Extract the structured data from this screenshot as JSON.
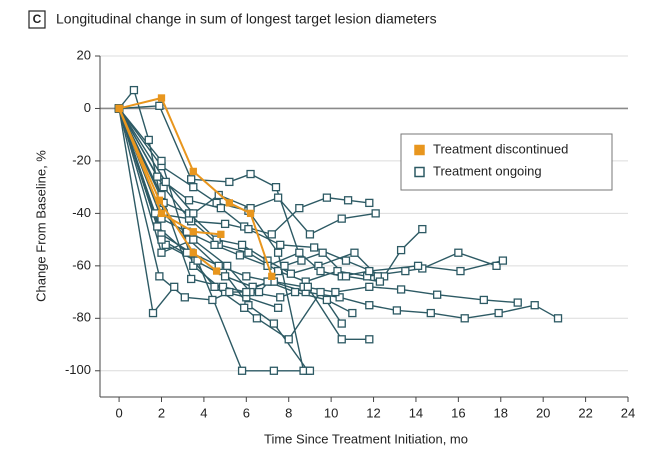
{
  "chart_data": {
    "type": "line",
    "panel_label": "C",
    "title": "Longitudinal change in sum of longest target lesion diameters",
    "x_label": "Time Since Treatment Initiation, mo",
    "y_label": "Change From Baseline, %",
    "xlim": [
      -0.9,
      24
    ],
    "ylim": [
      -110,
      20
    ],
    "xticks": [
      0,
      2,
      4,
      6,
      8,
      10,
      12,
      14,
      16,
      18,
      20,
      22,
      24
    ],
    "yticks": [
      20,
      0,
      -20,
      -40,
      -60,
      -80,
      -100
    ],
    "grid": true,
    "reference_line": 0,
    "legend": "upper right",
    "series": [
      {
        "name": "Treatment discontinued",
        "color": "#e8961e",
        "marker": "filled-square",
        "lines": [
          {
            "x": [
              0,
              2,
              3.5,
              5.2,
              6.2,
              7.2
            ],
            "values": [
              0,
              4,
              -24,
              -36,
              -40,
              -64
            ]
          },
          {
            "x": [
              0,
              2,
              3.5,
              4.8
            ],
            "values": [
              0,
              -40,
              -47,
              -48
            ]
          },
          {
            "x": [
              0,
              1.9,
              3.5,
              4.6
            ],
            "values": [
              0,
              -35,
              -55,
              -62
            ]
          }
        ]
      },
      {
        "name": "Treatment ongoing",
        "color": "#2d5a64",
        "marker": "open-square",
        "lines": [
          {
            "x": [
              0,
              0.7,
              1.4,
              2.1,
              3.3,
              4.9,
              6.1,
              7.3,
              8.9
            ],
            "values": [
              0,
              7,
              -12,
              -40,
              -50,
              -62,
              -75,
              -82,
              -100
            ]
          },
          {
            "x": [
              0,
              1.9,
              3.4,
              5.2,
              6.2,
              7.4,
              8.6
            ],
            "values": [
              0,
              1,
              -27,
              -28,
              -25,
              -30,
              -58
            ]
          },
          {
            "x": [
              0,
              2,
              3.5,
              4.6,
              6.1,
              7.5,
              8.7
            ],
            "values": [
              0,
              -22,
              -30,
              -36,
              -39,
              -55,
              -100
            ]
          },
          {
            "x": [
              0,
              1.8,
              3.3,
              4.8,
              5.9,
              7.2,
              8.5,
              9.8,
              10.8,
              11.8
            ],
            "values": [
              0,
              -26,
              -35,
              -38,
              -45,
              -48,
              -38,
              -34,
              -35,
              -36
            ]
          },
          {
            "x": [
              0,
              2.1,
              3.4,
              5,
              6.1,
              7.6,
              9.2,
              10.7,
              12.5,
              13.3,
              14.3
            ],
            "values": [
              0,
              -30,
              -43,
              -44,
              -46,
              -52,
              -53,
              -58,
              -64,
              -54,
              -46
            ]
          },
          {
            "x": [
              0,
              1.7,
              3.3,
              4.7,
              6.1,
              7.5,
              8.8,
              10.3,
              11.7,
              13.5,
              14.3,
              16,
              17.8
            ],
            "values": [
              0,
              -40,
              -42,
              -52,
              -55,
              -62,
              -66,
              -62,
              -64,
              -62,
              -61,
              -55,
              -60
            ]
          },
          {
            "x": [
              0,
              2,
              3.4,
              4.7,
              6,
              7.2,
              8.8,
              10.4,
              11.8,
              13.1,
              14.7,
              16.3,
              17.9,
              19.6,
              20.7
            ],
            "values": [
              0,
              -48,
              -55,
              -60,
              -64,
              -66,
              -70,
              -72,
              -75,
              -77,
              -78,
              -80,
              -78,
              -75,
              -80
            ]
          },
          {
            "x": [
              0,
              2.2,
              3.6,
              5,
              6.3,
              7.3,
              8.7,
              10.2,
              11.8,
              13.3,
              15,
              17.2,
              18.8
            ],
            "values": [
              0,
              -52,
              -58,
              -64,
              -68,
              -66,
              -68,
              -70,
              -68,
              -69,
              -71,
              -73,
              -74
            ]
          },
          {
            "x": [
              0,
              1.6,
              2.6
            ],
            "values": [
              0,
              -78,
              -68
            ]
          },
          {
            "x": [
              0,
              2,
              3.5,
              5,
              6,
              7.5
            ],
            "values": [
              0,
              -20,
              -60,
              -70,
              -72,
              -76
            ]
          },
          {
            "x": [
              0,
              1.8,
              3.2,
              4.5,
              5.9,
              6.5,
              8,
              9.5,
              10.5
            ],
            "values": [
              0,
              -45,
              -55,
              -68,
              -76,
              -80,
              -88,
              -70,
              -82
            ]
          },
          {
            "x": [
              0,
              2,
              3.5,
              5.1,
              6.2,
              7.6,
              8.9,
              10.5,
              11.8
            ],
            "values": [
              0,
              -55,
              -50,
              -60,
              -70,
              -72,
              -68,
              -88,
              -88
            ]
          },
          {
            "x": [
              0,
              2.1,
              3.3,
              4.6,
              5.8,
              7,
              8.1,
              9.4,
              11.1,
              12.2
            ],
            "values": [
              0,
              -36,
              -40,
              -50,
              -52,
              -58,
              -63,
              -60,
              -55,
              -64
            ]
          },
          {
            "x": [
              0,
              2,
              3.7,
              5.8,
              7.3,
              9
            ],
            "values": [
              0,
              -50,
              -58,
              -100,
              -100,
              -100
            ]
          },
          {
            "x": [
              0,
              2.2,
              3.5,
              4.7,
              6.2,
              7.5,
              9,
              10.5,
              12.1
            ],
            "values": [
              0,
              -28,
              -40,
              -33,
              -38,
              -34,
              -48,
              -42,
              -40
            ]
          },
          {
            "x": [
              0,
              2,
              3.2,
              4.5,
              5.7,
              7,
              8.5,
              9.5,
              10.5,
              11.8,
              14.1,
              16.1,
              18.1
            ],
            "values": [
              0,
              -42,
              -47,
              -52,
              -56,
              -60,
              -55,
              -62,
              -64,
              -62,
              -60,
              -62,
              -58
            ]
          },
          {
            "x": [
              0,
              2,
              3.4,
              4.9,
              6,
              7,
              8.3,
              9.8,
              11
            ],
            "values": [
              0,
              -33,
              -65,
              -68,
              -70,
              -66,
              -70,
              -73,
              -78
            ]
          },
          {
            "x": [
              0,
              1.9,
              3.1,
              4.4,
              5.2,
              6.6,
              7.8,
              9.6,
              10.7,
              12.3
            ],
            "values": [
              0,
              -64,
              -72,
              -73,
              -70,
              -70,
              -60,
              -55,
              -64,
              -66
            ]
          }
        ]
      }
    ]
  }
}
